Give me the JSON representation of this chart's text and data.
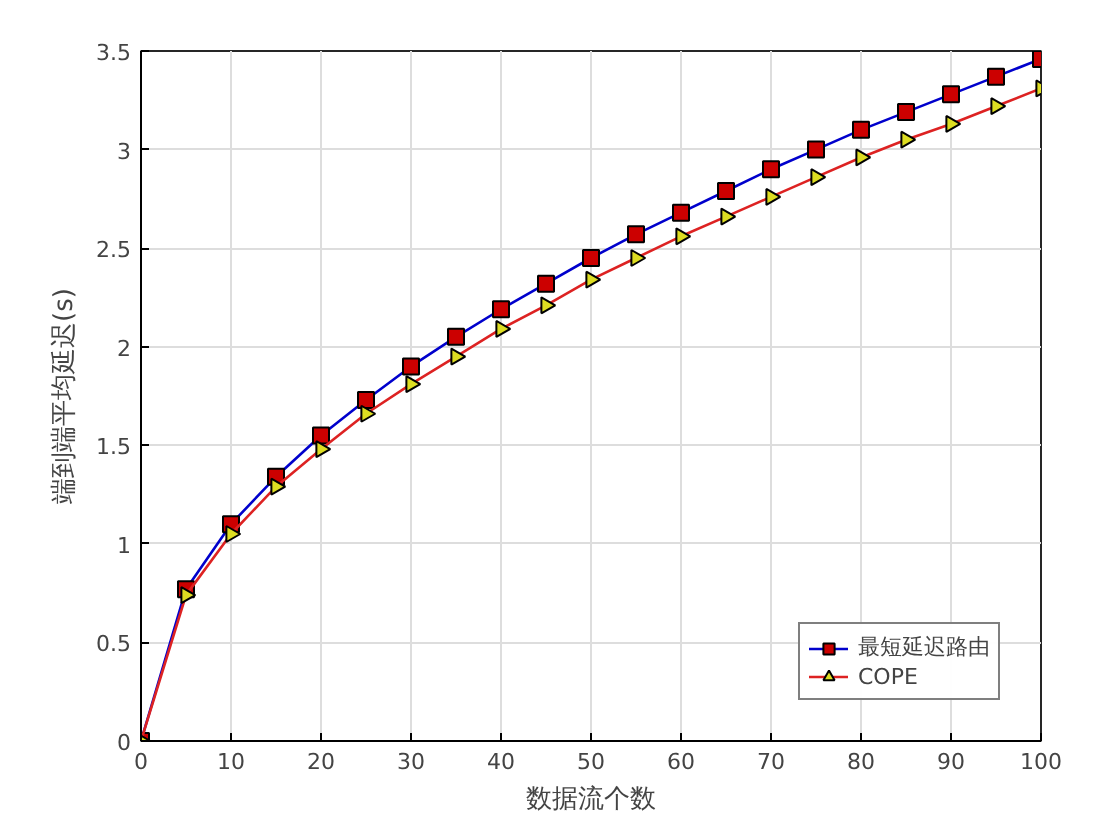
{
  "chart_data": {
    "type": "line",
    "xlabel": "数据流个数",
    "ylabel": "端到端平均延迟(s)",
    "x": [
      0,
      5,
      10,
      15,
      20,
      25,
      30,
      35,
      40,
      45,
      50,
      55,
      60,
      65,
      70,
      75,
      80,
      85,
      90,
      95,
      100
    ],
    "series": [
      {
        "name": "最短延迟路由",
        "color": "#0000cc",
        "colors": [
          "#cc0000",
          "#cc0000",
          "#cc0000",
          "#cc0000",
          "#cc0000",
          "#cc0000",
          "#cc0000",
          "#cc0000",
          "#cc0000",
          "#cc0000",
          "#cc0000",
          "#cc0000",
          "#cc0000",
          "#cc0000",
          "#cc0000",
          "#cc0000",
          "#cc0000",
          "#cc0000",
          "#cc0000",
          "#cc0000",
          "#cc0000"
        ],
        "marker": "square",
        "values": [
          0,
          0.77,
          1.1,
          1.34,
          1.55,
          1.73,
          1.9,
          2.05,
          2.19,
          2.32,
          2.45,
          2.57,
          2.68,
          2.79,
          2.9,
          3.0,
          3.1,
          3.19,
          3.28,
          3.37,
          3.46
        ]
      },
      {
        "name": "COPE",
        "color": "#dd2222",
        "colors": [
          "#dddd22",
          "#dddd22",
          "#dddd22",
          "#dddd22",
          "#dddd22",
          "#dddd22",
          "#dddd22",
          "#dddd22",
          "#dddd22",
          "#dddd22",
          "#dddd22",
          "#dddd22",
          "#dddd22",
          "#dddd22",
          "#dddd22",
          "#dddd22",
          "#dddd22",
          "#dddd22",
          "#dddd22",
          "#dddd22",
          "#dddd22"
        ],
        "marker": "triangle",
        "values": [
          0,
          0.74,
          1.05,
          1.29,
          1.48,
          1.66,
          1.81,
          1.95,
          2.09,
          2.21,
          2.34,
          2.45,
          2.56,
          2.66,
          2.76,
          2.86,
          2.96,
          3.05,
          3.13,
          3.22,
          3.31
        ]
      }
    ],
    "xlim": [
      0,
      100
    ],
    "xticks": [
      0,
      10,
      20,
      30,
      40,
      50,
      60,
      70,
      80,
      90,
      100
    ],
    "ylim": [
      0,
      3.5
    ],
    "yticks": [
      0,
      0.5,
      1,
      1.5,
      2,
      2.5,
      3,
      3.5
    ],
    "grid": true,
    "legend": "bottom right",
    "line_style": "solid"
  }
}
